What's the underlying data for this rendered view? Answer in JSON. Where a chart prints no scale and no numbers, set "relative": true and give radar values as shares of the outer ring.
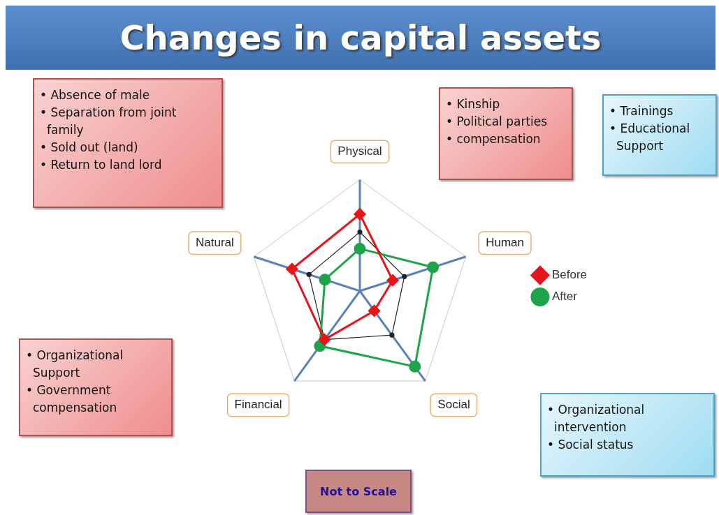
{
  "chart_data": {
    "type": "radar",
    "title": "Changes in capital assets",
    "relative": true,
    "grid": true,
    "legend": "right",
    "categories": [
      "Physical",
      "Human",
      "Social",
      "Financial",
      "Natural"
    ],
    "series": [
      {
        "name": "Before",
        "color": "#e8141c",
        "marker": "diamond",
        "values": [
          0.69,
          0.31,
          0.22,
          0.54,
          0.64
        ]
      },
      {
        "name": "After",
        "color": "#1fa34a",
        "marker": "circle",
        "values": [
          0.38,
          0.69,
          0.84,
          0.61,
          0.33
        ]
      },
      {
        "color": "#222222",
        "marker": "circle",
        "values": [
          0.53,
          0.42,
          0.49,
          0.54,
          0.48
        ]
      }
    ],
    "annotations": [
      "• Absence of male\n• Separation from joint family\n• Sold out (land)\n• Return to land lord",
      "• Kinship\n• Political parties\n• compensation",
      "• Trainings\n• Educational Support",
      "• Organizational Support\n• Government compensation",
      "• Organizational intervention\n• Social status",
      "Not to Scale"
    ]
  }
}
